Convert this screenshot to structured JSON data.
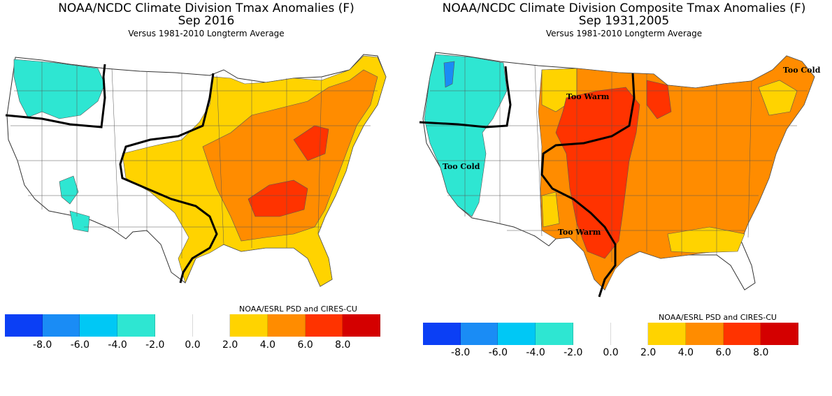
{
  "colors": {
    "c_neg8": "#0b3ff5",
    "c_neg6": "#1a8cf5",
    "c_neg4": "#00c8f5",
    "c_neg2": "#2ee6d2",
    "c_zero": "#ffffff",
    "c_pos2": "#ffd300",
    "c_pos4": "#ff8c00",
    "c_pos6": "#ff3300",
    "c_pos8": "#d40000",
    "line": "#000000"
  },
  "colorbar": {
    "swatch_colors": [
      "#0b3ff5",
      "#1a8cf5",
      "#00c8f5",
      "#2ee6d2",
      "#ffffff",
      "#ffffff",
      "#ffd300",
      "#ff8c00",
      "#ff3300",
      "#d40000"
    ],
    "ticks": [
      "-8.0",
      "-6.0",
      "-4.0",
      "-2.0",
      "0.0",
      "2.0",
      "4.0",
      "6.0",
      "8.0"
    ]
  },
  "left": {
    "title": "NOAA/NCDC Climate Division Tmax Anomalies (F)",
    "subtitle_line": "Sep 2016",
    "subtitle": "Versus 1981-2010 Longterm Average",
    "credit": "NOAA/ESRL PSD and CIRES-CU"
  },
  "right": {
    "title": "NOAA/NCDC Climate Division Composite Tmax Anomalies (F)",
    "subtitle_line": "Sep 1931,2005",
    "subtitle": "Versus 1981-2010 Longterm Average",
    "credit": "NOAA/ESRL PSD and CIRES-CU",
    "annotations": {
      "too_cold_ne": "Too Cold",
      "too_warm_north": "Too Warm",
      "too_cold_west": "Too Cold",
      "too_warm_south": "Too Warm"
    }
  }
}
